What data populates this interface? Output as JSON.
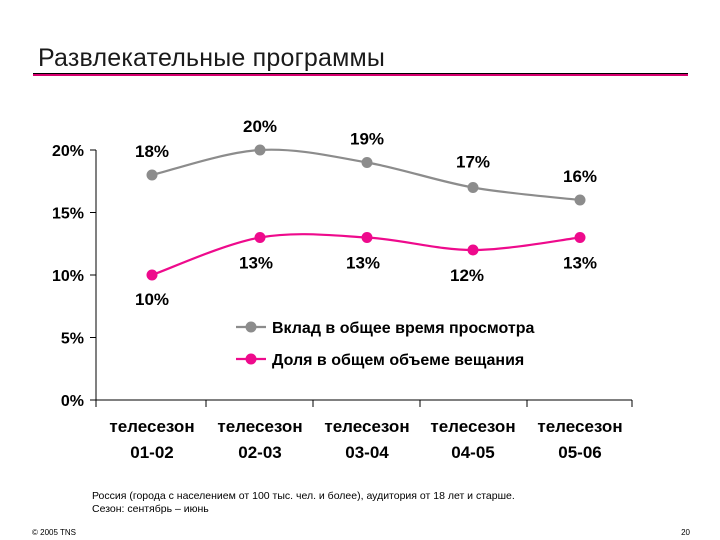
{
  "page": {
    "title": "Развлекательные программы",
    "note_line1": "Россия (города с населением от 100 тыс. чел. и более), аудитория от 18 лет и старше.",
    "note_line2": "Сезон: сентябрь – июнь",
    "copyright": "© 2005 TNS",
    "page_number": "20",
    "accent_color": "#d7006f"
  },
  "chart_data": {
    "type": "line",
    "categories": [
      [
        "телесезон",
        "01-02"
      ],
      [
        "телесезон",
        "02-03"
      ],
      [
        "телесезон",
        "03-04"
      ],
      [
        "телесезон",
        "04-05"
      ],
      [
        "телесезон",
        "05-06"
      ]
    ],
    "series": [
      {
        "name": "Вклад в общее время просмотра",
        "color": "#8c8c8c",
        "values": [
          18,
          20,
          19,
          17,
          16
        ],
        "labels": [
          "18%",
          "20%",
          "19%",
          "17%",
          "16%"
        ]
      },
      {
        "name": "Доля в общем объеме вещания",
        "color": "#ee0a8c",
        "values": [
          10,
          13,
          13,
          12,
          13
        ],
        "labels": [
          "10%",
          "13%",
          "13%",
          "12%",
          "13%"
        ]
      }
    ],
    "y_ticks": [
      0,
      5,
      10,
      15,
      20
    ],
    "y_tick_labels": [
      "0%",
      "5%",
      "10%",
      "15%",
      "20%"
    ],
    "ylim": [
      0,
      20
    ],
    "grid": false,
    "legend_position": "center-right"
  }
}
